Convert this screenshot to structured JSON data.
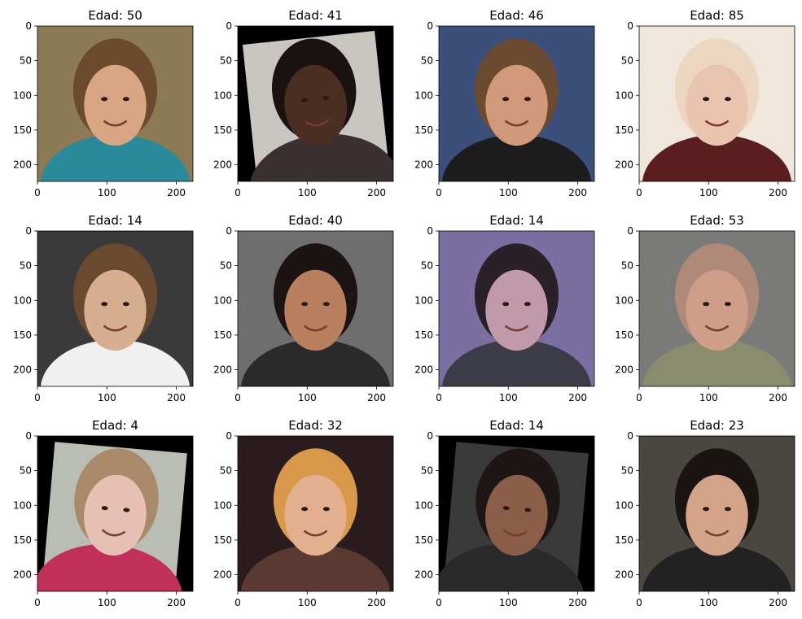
{
  "chart_data": {
    "type": "image_grid",
    "rows": 3,
    "cols": 4,
    "xlim": [
      0,
      224
    ],
    "ylim": [
      224,
      0
    ],
    "xticks": [
      0,
      100,
      200
    ],
    "yticks": [
      0,
      50,
      100,
      150,
      200
    ],
    "panels": [
      {
        "title": "Edad: 50",
        "bg": "#8c7a55",
        "skin": "#d9a684",
        "hair": "#6b4a2e",
        "shirt": "#2b8a9a",
        "rotated": false
      },
      {
        "title": "Edad: 41",
        "bg": "#c9c6c2",
        "skin": "#4a2e22",
        "hair": "#1a1210",
        "shirt": "#3a3030",
        "rotated": true
      },
      {
        "title": "Edad: 46",
        "bg": "#3a4f7a",
        "skin": "#d09a7a",
        "hair": "#6a4a30",
        "shirt": "#1c1c1c",
        "rotated": false
      },
      {
        "title": "Edad: 85",
        "bg": "#efe6dc",
        "skin": "#e9c4b0",
        "hair": "#ecd6bf",
        "shirt": "#5a1e1e",
        "rotated": false
      },
      {
        "title": "Edad: 14",
        "bg": "#3a3a3a",
        "skin": "#d8ae90",
        "hair": "#6a4a2e",
        "shirt": "#f0f0f0",
        "rotated": false
      },
      {
        "title": "Edad: 40",
        "bg": "#6e6e6e",
        "skin": "#b8805e",
        "hair": "#1b1412",
        "shirt": "#2a2a2a",
        "rotated": false
      },
      {
        "title": "Edad: 14",
        "bg": "#7a6fa0",
        "skin": "#c09aa8",
        "hair": "#2a2028",
        "shirt": "#3c3c48",
        "rotated": false
      },
      {
        "title": "Edad: 53",
        "bg": "#7a7a78",
        "skin": "#cf9e88",
        "hair": "#b08a78",
        "shirt": "#8a8c6e",
        "rotated": false
      },
      {
        "title": "Edad: 4",
        "bg": "#b9bdb4",
        "skin": "#e6c0b2",
        "hair": "#a88a6a",
        "shirt": "#c0305a",
        "rotated": true
      },
      {
        "title": "Edad: 32",
        "bg": "#2a1c1c",
        "skin": "#e2b08e",
        "hair": "#d89a4a",
        "shirt": "#5a3a30",
        "rotated": false
      },
      {
        "title": "Edad: 14",
        "bg": "#3a3a3a",
        "skin": "#8a5e48",
        "hair": "#1e1614",
        "shirt": "#2a2a2a",
        "rotated": true
      },
      {
        "title": "Edad: 23",
        "bg": "#4a4640",
        "skin": "#d4a488",
        "hair": "#1a1412",
        "shirt": "#222222",
        "rotated": false
      }
    ]
  }
}
